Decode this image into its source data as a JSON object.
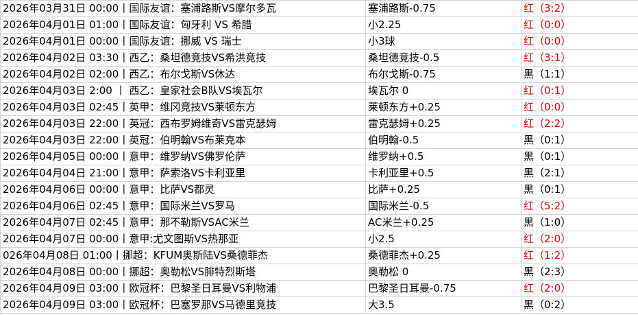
{
  "table": {
    "rows": [
      [
        "2026年03月31日 00:00丨国际友谊：塞浦路斯VS摩尔多瓦",
        "塞浦路斯-0.75",
        "红（3:2）"
      ],
      [
        "2026年04月01日 01:00丨国际友谊：匈牙利 VS 希腊",
        "小2.25",
        "红（0:0）"
      ],
      [
        "2026年04月01日 00:00丨国际友谊：挪威 VS 瑞士",
        "小3球",
        "红（0:0）"
      ],
      [
        "2026年04月02日 03:30丨西乙：桑坦德竞技VS希洪竞技",
        "桑坦德竞技-0.5",
        "红（3:1）"
      ],
      [
        "2026年04月02日 02:00丨西乙：布尔戈斯VS休达",
        "布尔戈斯-0.75",
        "黑（1:1）"
      ],
      [
        "2026年04月03日 2:00 丨 西乙：皇家社会B队VS埃瓦尔",
        "埃瓦尔 0",
        "红（0:1）"
      ],
      [
        "2026年04月03日 02:45丨英甲：维冈竞技VS莱顿东方",
        "莱顿东方+0.25",
        "红（0:0）"
      ],
      [
        "2026年04月03日 22:00丨英冠：西布罗姆维奇VS雷克瑟姆",
        "雷克瑟姆+0.25",
        "红（2:2）"
      ],
      [
        "2026年04月03日 22:00丨英冠：伯明翰VS布莱克本",
        "伯明翰-0.5",
        "黑（0:1）"
      ],
      [
        "2026年04月05日 00:00丨意甲：维罗纳VS佛罗伦萨",
        "维罗纳+0.5",
        "黑（0:1）"
      ],
      [
        "2026年04月04日 21:00丨意甲：萨索洛VS卡利亚里",
        "卡利亚里+0.5",
        "黑（2:1）"
      ],
      [
        "2026年04月06日 00:00丨意甲：比萨VS都灵",
        "比萨+0.25",
        "黑（0:1）"
      ],
      [
        "2026年04月06日 02:45丨意甲：国际米兰VS罗马",
        "国际米兰-0.5",
        "红（5:2）"
      ],
      [
        "2026年04月07日 02:45丨意甲：那不勒斯VSAC米兰",
        "AC米兰+0.25",
        "黑（1:0）"
      ],
      [
        "2026年04月07日 00:00丨意甲:尤文图斯VS热那亚",
        "小2.5",
        "红（2:0）"
      ],
      [
        "026年04月08日 01:00丨挪超：KFUM奥斯陆VS桑德菲杰",
        "桑德菲杰+0.25",
        "红（1:2）"
      ],
      [
        "2026年04月08日 00:00丨挪超：奥勒松VS腓特烈斯塔",
        "奥勒松 0",
        "黑（2:3）"
      ],
      [
        "2026年04月09日 03:00丨欧冠杯：巴黎圣日耳曼VS利物浦",
        "巴黎圣日耳曼-0.75",
        "红（2:0）"
      ],
      [
        "2026年04月09日 03:00丨欧冠杯：巴塞罗那VS马德里竞技",
        "大3.5",
        "黑（0:2）"
      ]
    ],
    "result_colors": [
      "#e00000",
      "#e00000",
      "#e00000",
      "#e00000",
      "#000000",
      "#e00000",
      "#e00000",
      "#e00000",
      "#000000",
      "#000000",
      "#000000",
      "#000000",
      "#e00000",
      "#000000",
      "#e00000",
      "#e00000",
      "#000000",
      "#e00000",
      "#000000"
    ]
  }
}
